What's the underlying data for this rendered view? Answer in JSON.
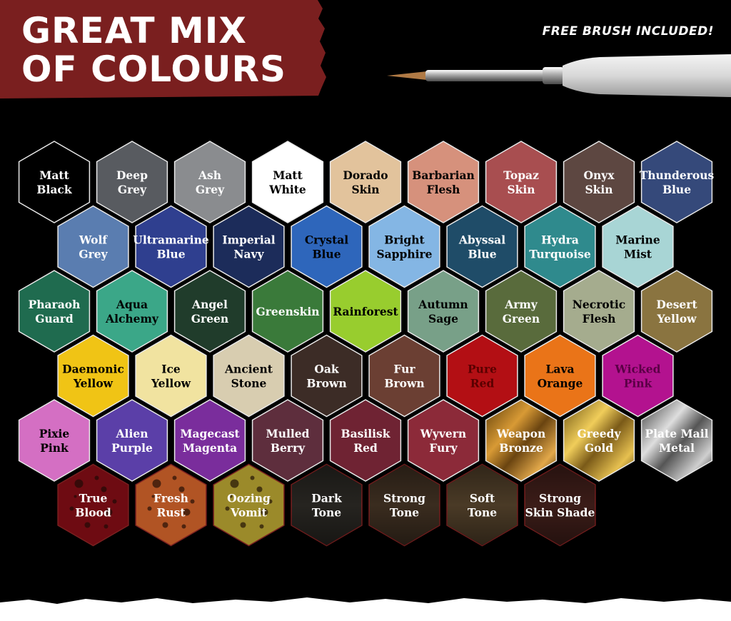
{
  "header": {
    "title_line1": "GREAT MIX",
    "title_line2": "OF COLOURS",
    "brush_note": "FREE BRUSH INCLUDED!"
  },
  "colors": {
    "background": "#000000",
    "banner": "#7a1f1f",
    "hex_border": "#e8e8e8"
  },
  "paints": [
    {
      "row": 0,
      "col": 0,
      "l1": "Matt",
      "l2": "Black",
      "fill": "#000000",
      "text": "#ffffff",
      "kind": "solid"
    },
    {
      "row": 0,
      "col": 1,
      "l1": "Deep",
      "l2": "Grey",
      "fill": "#585b60",
      "text": "#ffffff",
      "kind": "solid"
    },
    {
      "row": 0,
      "col": 2,
      "l1": "Ash",
      "l2": "Grey",
      "fill": "#8a8c8f",
      "text": "#ffffff",
      "kind": "solid"
    },
    {
      "row": 0,
      "col": 3,
      "l1": "Matt",
      "l2": "White",
      "fill": "#ffffff",
      "text": "#000000",
      "kind": "solid"
    },
    {
      "row": 0,
      "col": 4,
      "l1": "Dorado",
      "l2": "Skin",
      "fill": "#e2c39c",
      "text": "#000000",
      "kind": "solid"
    },
    {
      "row": 0,
      "col": 5,
      "l1": "Barbarian",
      "l2": "Flesh",
      "fill": "#d6917c",
      "text": "#000000",
      "kind": "solid"
    },
    {
      "row": 0,
      "col": 6,
      "l1": "Topaz",
      "l2": "Skin",
      "fill": "#a84e50",
      "text": "#ffffff",
      "kind": "solid"
    },
    {
      "row": 0,
      "col": 7,
      "l1": "Onyx",
      "l2": "Skin",
      "fill": "#5d4741",
      "text": "#ffffff",
      "kind": "solid"
    },
    {
      "row": 0,
      "col": 8,
      "l1": "Thunderous",
      "l2": "Blue",
      "fill": "#35497a",
      "text": "#ffffff",
      "kind": "solid"
    },
    {
      "row": 1,
      "col": 0,
      "l1": "Wolf",
      "l2": "Grey",
      "fill": "#5a7db0",
      "text": "#ffffff",
      "kind": "solid"
    },
    {
      "row": 1,
      "col": 1,
      "l1": "Ultramarine",
      "l2": "Blue",
      "fill": "#2f3f8f",
      "text": "#ffffff",
      "kind": "solid"
    },
    {
      "row": 1,
      "col": 2,
      "l1": "Imperial",
      "l2": "Navy",
      "fill": "#1c2c5a",
      "text": "#ffffff",
      "kind": "solid"
    },
    {
      "row": 1,
      "col": 3,
      "l1": "Crystal",
      "l2": "Blue",
      "fill": "#2e66bb",
      "text": "#000000",
      "kind": "solid"
    },
    {
      "row": 1,
      "col": 4,
      "l1": "Bright",
      "l2": "Sapphire",
      "fill": "#84b6e4",
      "text": "#000000",
      "kind": "solid"
    },
    {
      "row": 1,
      "col": 5,
      "l1": "Abyssal",
      "l2": "Blue",
      "fill": "#1f4c68",
      "text": "#ffffff",
      "kind": "solid"
    },
    {
      "row": 1,
      "col": 6,
      "l1": "Hydra",
      "l2": "Turquoise",
      "fill": "#2f8a8d",
      "text": "#ffffff",
      "kind": "solid"
    },
    {
      "row": 1,
      "col": 7,
      "l1": "Marine",
      "l2": "Mist",
      "fill": "#a8d5d5",
      "text": "#000000",
      "kind": "solid"
    },
    {
      "row": 2,
      "col": 0,
      "l1": "Pharaoh",
      "l2": "Guard",
      "fill": "#1f6b4f",
      "text": "#ffffff",
      "kind": "solid"
    },
    {
      "row": 2,
      "col": 1,
      "l1": "Aqua",
      "l2": "Alchemy",
      "fill": "#3ba788",
      "text": "#000000",
      "kind": "solid"
    },
    {
      "row": 2,
      "col": 2,
      "l1": "Angel",
      "l2": "Green",
      "fill": "#203c2b",
      "text": "#ffffff",
      "kind": "solid"
    },
    {
      "row": 2,
      "col": 3,
      "l1": "Greenskin",
      "l2": "",
      "fill": "#3a7a3a",
      "text": "#ffffff",
      "kind": "solid"
    },
    {
      "row": 2,
      "col": 4,
      "l1": "Rainforest",
      "l2": "",
      "fill": "#98cd2e",
      "text": "#000000",
      "kind": "solid"
    },
    {
      "row": 2,
      "col": 5,
      "l1": "Autumn",
      "l2": "Sage",
      "fill": "#78a088",
      "text": "#000000",
      "kind": "solid"
    },
    {
      "row": 2,
      "col": 6,
      "l1": "Army",
      "l2": "Green",
      "fill": "#596b3c",
      "text": "#ffffff",
      "kind": "solid"
    },
    {
      "row": 2,
      "col": 7,
      "l1": "Necrotic",
      "l2": "Flesh",
      "fill": "#a5ac8e",
      "text": "#000000",
      "kind": "solid"
    },
    {
      "row": 2,
      "col": 8,
      "l1": "Desert",
      "l2": "Yellow",
      "fill": "#8a7440",
      "text": "#ffffff",
      "kind": "solid"
    },
    {
      "row": 3,
      "col": 0,
      "l1": "Daemonic",
      "l2": "Yellow",
      "fill": "#f0c415",
      "text": "#000000",
      "kind": "solid"
    },
    {
      "row": 3,
      "col": 1,
      "l1": "Ice",
      "l2": "Yellow",
      "fill": "#f1e3a0",
      "text": "#000000",
      "kind": "solid"
    },
    {
      "row": 3,
      "col": 2,
      "l1": "Ancient",
      "l2": "Stone",
      "fill": "#d8cdb0",
      "text": "#000000",
      "kind": "solid"
    },
    {
      "row": 3,
      "col": 3,
      "l1": "Oak",
      "l2": "Brown",
      "fill": "#3c2c26",
      "text": "#ffffff",
      "kind": "solid"
    },
    {
      "row": 3,
      "col": 4,
      "l1": "Fur",
      "l2": "Brown",
      "fill": "#6b3f33",
      "text": "#ffffff",
      "kind": "solid"
    },
    {
      "row": 3,
      "col": 5,
      "l1": "Pure",
      "l2": "Red",
      "fill": "#b30f14",
      "text": "#5a0000",
      "kind": "solid"
    },
    {
      "row": 3,
      "col": 6,
      "l1": "Lava",
      "l2": "Orange",
      "fill": "#ea7418",
      "text": "#000000",
      "kind": "solid"
    },
    {
      "row": 3,
      "col": 7,
      "l1": "Wicked",
      "l2": "Pink",
      "fill": "#b3128f",
      "text": "#5a0045",
      "kind": "solid"
    },
    {
      "row": 4,
      "col": 0,
      "l1": "Pixie",
      "l2": "Pink",
      "fill": "#d46fc3",
      "text": "#000000",
      "kind": "solid"
    },
    {
      "row": 4,
      "col": 1,
      "l1": "Alien",
      "l2": "Purple",
      "fill": "#5b3fa8",
      "text": "#ffffff",
      "kind": "solid"
    },
    {
      "row": 4,
      "col": 2,
      "l1": "Magecast",
      "l2": "Magenta",
      "fill": "#7a2d9c",
      "text": "#ffffff",
      "kind": "solid"
    },
    {
      "row": 4,
      "col": 3,
      "l1": "Mulled",
      "l2": "Berry",
      "fill": "#5e2e3d",
      "text": "#ffffff",
      "kind": "solid"
    },
    {
      "row": 4,
      "col": 4,
      "l1": "Basilisk",
      "l2": "Red",
      "fill": "#6f2333",
      "text": "#ffffff",
      "kind": "solid"
    },
    {
      "row": 4,
      "col": 5,
      "l1": "Wyvern",
      "l2": "Fury",
      "fill": "#8c2a39",
      "text": "#ffffff",
      "kind": "solid"
    },
    {
      "row": 4,
      "col": 6,
      "l1": "Weapon",
      "l2": "Bronze",
      "fill": "#a66a16",
      "text": "#ffffff",
      "kind": "metal"
    },
    {
      "row": 4,
      "col": 7,
      "l1": "Greedy",
      "l2": "Gold",
      "fill": "#b68c24",
      "text": "#ffffff",
      "kind": "metal"
    },
    {
      "row": 4,
      "col": 8,
      "l1": "Plate Mail",
      "l2": "Metal",
      "fill": "#8d8d8d",
      "text": "#ffffff",
      "kind": "metal"
    },
    {
      "row": 5,
      "col": 0,
      "l1": "True",
      "l2": "Blood",
      "fill": "#6e0b12",
      "text": "#ffffff",
      "kind": "splatter"
    },
    {
      "row": 5,
      "col": 1,
      "l1": "Fresh",
      "l2": "Rust",
      "fill": "#b15424",
      "text": "#ffffff",
      "kind": "splatter"
    },
    {
      "row": 5,
      "col": 2,
      "l1": "Oozing",
      "l2": "Vomit",
      "fill": "#9b8a2a",
      "text": "#ffffff",
      "kind": "splatter"
    },
    {
      "row": 5,
      "col": 3,
      "l1": "Dark",
      "l2": "Tone",
      "fill": "#262420",
      "text": "#ffffff",
      "kind": "wash"
    },
    {
      "row": 5,
      "col": 4,
      "l1": "Strong",
      "l2": "Tone",
      "fill": "#3a2c1f",
      "text": "#ffffff",
      "kind": "wash"
    },
    {
      "row": 5,
      "col": 5,
      "l1": "Soft",
      "l2": "Tone",
      "fill": "#4a3a26",
      "text": "#ffffff",
      "kind": "wash"
    },
    {
      "row": 5,
      "col": 6,
      "l1": "Strong",
      "l2": "Skin Shade",
      "fill": "#3b1c18",
      "text": "#ffffff",
      "kind": "wash"
    }
  ]
}
